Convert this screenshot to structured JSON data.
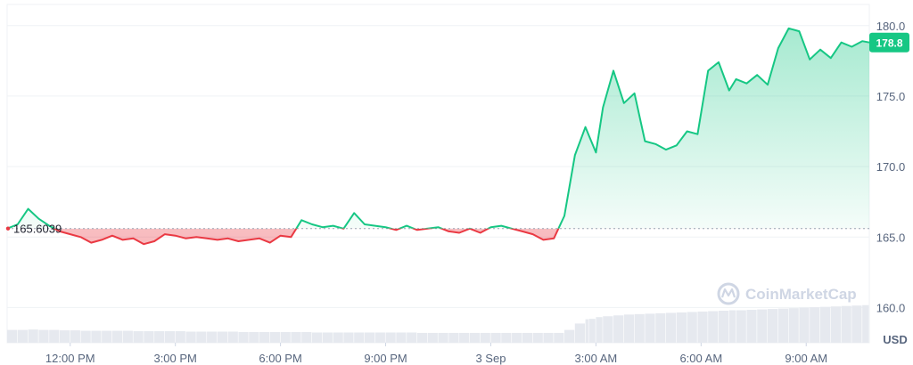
{
  "chart_data": {
    "type": "line",
    "x_labels": [
      "12:00 PM",
      "3:00 PM",
      "6:00 PM",
      "9:00 PM",
      "3 Sep",
      "3:00 AM",
      "6:00 AM",
      "9:00 AM"
    ],
    "y_ticks": [
      160.0,
      165.0,
      170.0,
      175.0,
      180.0
    ],
    "y_tick_labels": [
      "160.0",
      "165.0",
      "170.0",
      "175.0",
      "180.0"
    ],
    "ylim": [
      157.5,
      181.5
    ],
    "xlim_hours": [
      10.2,
      34.8
    ],
    "unit_label": "USD",
    "reference_value": 165.6039,
    "reference_label": "165.6039",
    "current_value": 178.8,
    "current_label": "178.8",
    "watermark": "CoinMarketCap",
    "colors": {
      "above": "#16c784",
      "below": "#ea3943",
      "above_fill": "#16c784",
      "below_fill": "#ea3943",
      "grid": "#eff2f5",
      "volume": "#e6e9ef"
    },
    "grid": true,
    "x_hours": [
      10.2,
      10.5,
      10.8,
      11.1,
      11.4,
      11.7,
      12.0,
      12.3,
      12.6,
      12.9,
      13.2,
      13.5,
      13.8,
      14.1,
      14.4,
      14.7,
      15.0,
      15.3,
      15.6,
      15.9,
      16.2,
      16.5,
      16.8,
      17.1,
      17.4,
      17.7,
      18.0,
      18.3,
      18.6,
      18.9,
      19.2,
      19.5,
      19.8,
      20.1,
      20.4,
      20.7,
      21.0,
      21.3,
      21.6,
      21.9,
      22.2,
      22.5,
      22.8,
      23.1,
      23.4,
      23.7,
      24.0,
      24.3,
      24.6,
      24.9,
      25.2,
      25.5,
      25.8,
      26.1,
      26.4,
      26.7,
      26.8,
      27.0,
      27.2,
      27.5,
      27.8,
      28.1,
      28.4,
      28.7,
      29.0,
      29.3,
      29.6,
      29.9,
      30.2,
      30.5,
      30.8,
      31.0,
      31.3,
      31.6,
      31.9,
      32.2,
      32.5,
      32.8,
      33.1,
      33.4,
      33.7,
      34.0,
      34.3,
      34.6,
      34.8
    ],
    "values": [
      165.6,
      165.9,
      167.0,
      166.3,
      165.8,
      165.4,
      165.2,
      165.0,
      164.6,
      164.8,
      165.1,
      164.8,
      164.9,
      164.5,
      164.7,
      165.2,
      165.1,
      164.9,
      165.0,
      164.9,
      164.8,
      164.9,
      164.7,
      164.8,
      164.9,
      164.6,
      165.1,
      165.0,
      166.2,
      165.9,
      165.7,
      165.8,
      165.6,
      166.7,
      165.9,
      165.8,
      165.7,
      165.5,
      165.8,
      165.5,
      165.6,
      165.7,
      165.4,
      165.3,
      165.6,
      165.3,
      165.7,
      165.8,
      165.6,
      165.4,
      165.2,
      164.8,
      164.9,
      166.5,
      170.8,
      172.8,
      172.2,
      171.0,
      174.2,
      176.8,
      174.5,
      175.2,
      171.8,
      171.6,
      171.2,
      171.5,
      172.5,
      172.3,
      176.8,
      177.4,
      175.4,
      176.2,
      175.9,
      176.5,
      175.8,
      178.4,
      179.8,
      179.6,
      177.6,
      178.3,
      177.7,
      178.8,
      178.5,
      178.9,
      178.8
    ],
    "volume": [
      0.3,
      0.3,
      0.31,
      0.3,
      0.3,
      0.29,
      0.29,
      0.28,
      0.28,
      0.28,
      0.28,
      0.28,
      0.27,
      0.27,
      0.27,
      0.27,
      0.27,
      0.26,
      0.26,
      0.26,
      0.26,
      0.26,
      0.25,
      0.25,
      0.25,
      0.25,
      0.25,
      0.25,
      0.25,
      0.24,
      0.24,
      0.24,
      0.24,
      0.24,
      0.24,
      0.24,
      0.24,
      0.24,
      0.24,
      0.23,
      0.23,
      0.23,
      0.23,
      0.23,
      0.23,
      0.23,
      0.23,
      0.23,
      0.23,
      0.23,
      0.23,
      0.23,
      0.23,
      0.3,
      0.45,
      0.55,
      0.56,
      0.6,
      0.62,
      0.64,
      0.66,
      0.67,
      0.68,
      0.69,
      0.7,
      0.71,
      0.72,
      0.73,
      0.74,
      0.75,
      0.76,
      0.76,
      0.77,
      0.78,
      0.79,
      0.8,
      0.81,
      0.82,
      0.83,
      0.84,
      0.85,
      0.86,
      0.87,
      0.88,
      0.9
    ]
  }
}
